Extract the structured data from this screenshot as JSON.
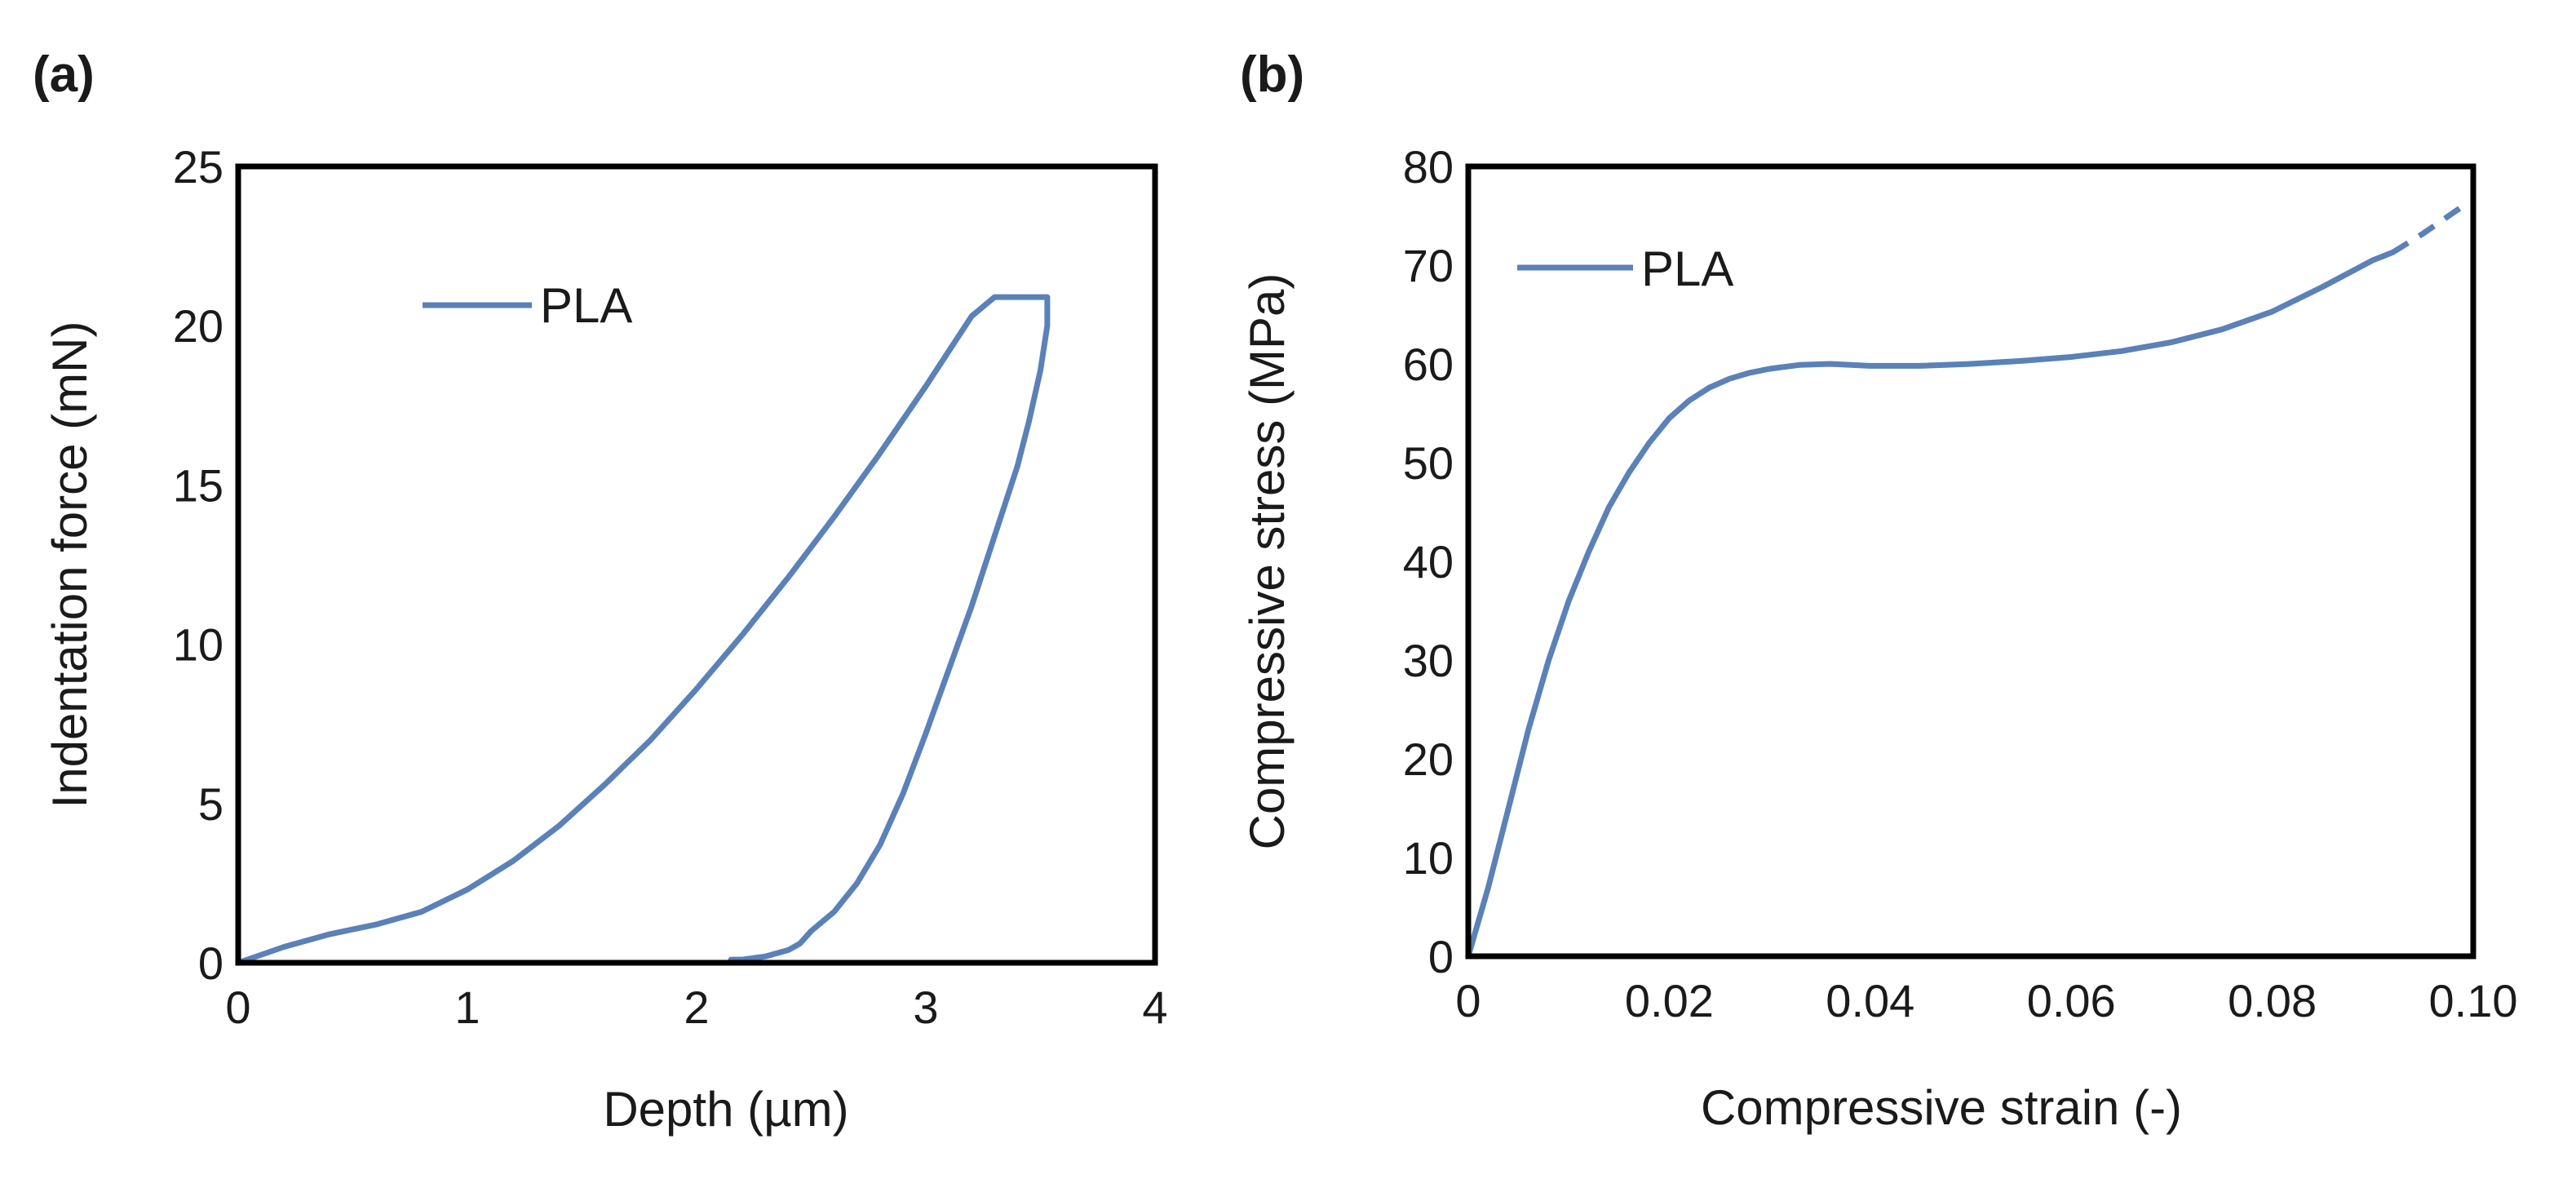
{
  "colors": {
    "series": "#5a81b8",
    "axis": "#000000"
  },
  "chart_data": [
    {
      "panel_label": "(a)",
      "type": "line",
      "title": "",
      "xlabel": "Depth (µm)",
      "ylabel": "Indentation force (mN)",
      "xlim": [
        0,
        4
      ],
      "ylim": [
        0,
        25
      ],
      "xticks": [
        0,
        1,
        2,
        3,
        4
      ],
      "yticks": [
        0,
        5,
        10,
        15,
        20,
        25
      ],
      "xtick_labels": [
        "0",
        "1",
        "2",
        "3",
        "4"
      ],
      "ytick_labels": [
        "0",
        "5",
        "10",
        "15",
        "20",
        "25"
      ],
      "grid": false,
      "legend": {
        "position": "top-left",
        "entries": [
          "PLA"
        ]
      },
      "series": [
        {
          "name": "PLA",
          "x": [
            0,
            0.2,
            0.4,
            0.6,
            0.8,
            1.0,
            1.2,
            1.4,
            1.6,
            1.8,
            2.0,
            2.2,
            2.4,
            2.6,
            2.8,
            3.0,
            3.1,
            3.2,
            3.3,
            3.45,
            3.53,
            3.53,
            3.5,
            3.45,
            3.4,
            3.3,
            3.2,
            3.1,
            3.0,
            2.9,
            2.8,
            2.7,
            2.6,
            2.5,
            2.45,
            2.4,
            2.3,
            2.2,
            2.15
          ],
          "y": [
            0,
            0.5,
            0.9,
            1.2,
            1.6,
            2.3,
            3.2,
            4.3,
            5.6,
            7.0,
            8.6,
            10.3,
            12.1,
            14.0,
            16.0,
            18.1,
            19.2,
            20.3,
            20.9,
            20.9,
            20.9,
            20.0,
            18.6,
            17.0,
            15.6,
            13.4,
            11.2,
            9.2,
            7.2,
            5.3,
            3.7,
            2.5,
            1.6,
            1.0,
            0.6,
            0.4,
            0.2,
            0.1,
            0.1
          ]
        }
      ]
    },
    {
      "panel_label": "(b)",
      "type": "line",
      "title": "",
      "xlabel": "Compressive strain (-)",
      "ylabel": "Compressive stress (MPa)",
      "xlim": [
        0,
        0.1
      ],
      "ylim": [
        0,
        80
      ],
      "xticks": [
        0,
        0.02,
        0.04,
        0.06,
        0.08,
        0.1
      ],
      "yticks": [
        0,
        10,
        20,
        30,
        40,
        50,
        60,
        70,
        80
      ],
      "xtick_labels": [
        "0",
        "0.02",
        "0.04",
        "0.06",
        "0.08",
        "0.10"
      ],
      "ytick_labels": [
        "0",
        "10",
        "20",
        "30",
        "40",
        "50",
        "60",
        "70",
        "80"
      ],
      "grid": false,
      "legend": {
        "position": "top-left",
        "entries": [
          "PLA"
        ]
      },
      "series": [
        {
          "name": "PLA",
          "x": [
            0,
            0.002,
            0.004,
            0.006,
            0.008,
            0.01,
            0.012,
            0.014,
            0.016,
            0.018,
            0.02,
            0.022,
            0.024,
            0.026,
            0.028,
            0.03,
            0.033,
            0.036,
            0.04,
            0.045,
            0.05,
            0.055,
            0.06,
            0.065,
            0.07,
            0.075,
            0.08,
            0.085,
            0.09,
            0.092
          ],
          "y": [
            0,
            7,
            15,
            23,
            30,
            36,
            41,
            45.5,
            49,
            52,
            54.5,
            56.3,
            57.6,
            58.5,
            59.1,
            59.5,
            59.9,
            60.0,
            59.8,
            59.8,
            60.0,
            60.3,
            60.7,
            61.3,
            62.2,
            63.5,
            65.3,
            67.8,
            70.5,
            71.3
          ]
        },
        {
          "name": "PLA (dashed extension)",
          "x": [
            0.092,
            0.095,
            0.099
          ],
          "y": [
            71.3,
            73.2,
            76.0
          ]
        }
      ]
    }
  ]
}
